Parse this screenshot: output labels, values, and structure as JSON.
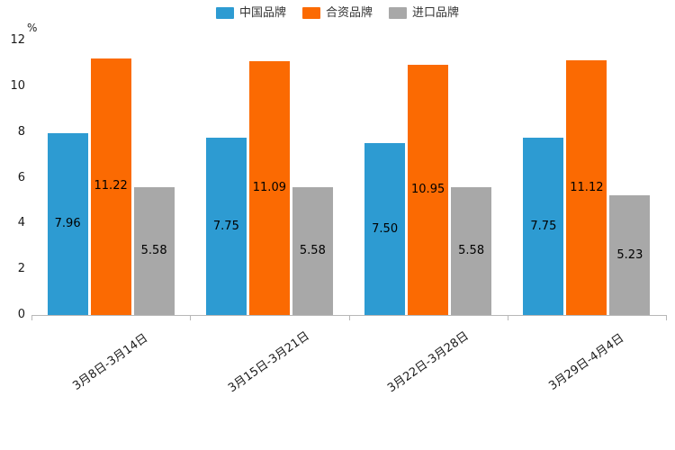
{
  "chart_data": {
    "type": "bar",
    "title": "",
    "ylabel": "%",
    "xlabel": "",
    "categories": [
      "3月8日-3月14日",
      "3月15日-3月21日",
      "3月22日-3月28日",
      "3月29日-4月4日"
    ],
    "series": [
      {
        "name": "中国品牌",
        "color": "#2D9BD2",
        "values": [
          7.96,
          7.75,
          7.5,
          7.75
        ]
      },
      {
        "name": "合资品牌",
        "color": "#FB6A02",
        "values": [
          11.22,
          11.09,
          10.95,
          11.12
        ]
      },
      {
        "name": "进口品牌",
        "color": "#A8A8A8",
        "values": [
          5.58,
          5.58,
          5.58,
          5.23
        ]
      }
    ],
    "ylim": [
      0,
      12
    ],
    "yticks": [
      0,
      2,
      4,
      6,
      8,
      10,
      12
    ],
    "grid": false,
    "legend_position": "top",
    "value_label_decimals": 2
  }
}
